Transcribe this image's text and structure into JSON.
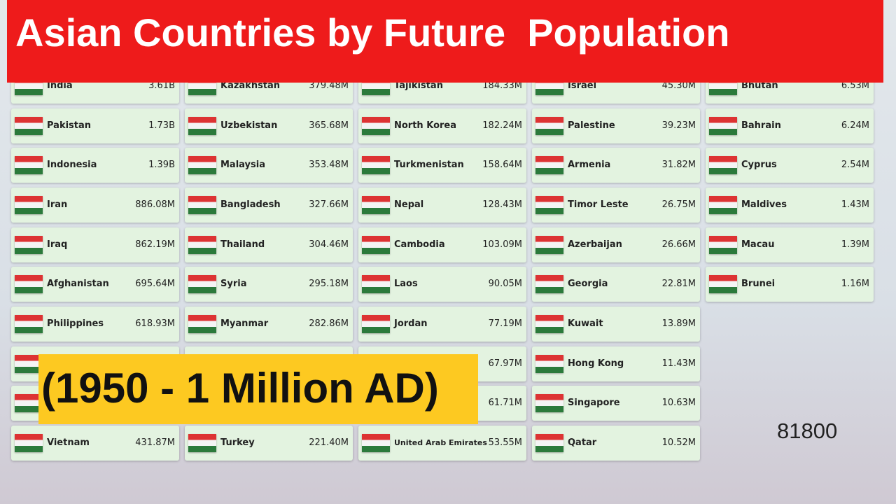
{
  "header": {
    "title": "Asian Countries by Future  Population"
  },
  "banner": {
    "text": "(1950 - 1 Million AD)"
  },
  "year": "81800",
  "columns": [
    {
      "cards": [
        {
          "name": "India",
          "value": "3.61B"
        },
        {
          "name": "Pakistan",
          "value": "1.73B"
        },
        {
          "name": "Indonesia",
          "value": "1.39B"
        },
        {
          "name": "Iran",
          "value": "886.08M"
        },
        {
          "name": "Iraq",
          "value": "862.19M"
        },
        {
          "name": "Afghanistan",
          "value": "695.64M"
        },
        {
          "name": "Philippines",
          "value": "618.93M"
        },
        null,
        null,
        {
          "name": "Vietnam",
          "value": "431.87M"
        }
      ]
    },
    {
      "cards": [
        {
          "name": "Kazakhstan",
          "value": "379.48M"
        },
        {
          "name": "Uzbekistan",
          "value": "365.68M"
        },
        {
          "name": "Malaysia",
          "value": "353.48M"
        },
        {
          "name": "Bangladesh",
          "value": "327.66M"
        },
        {
          "name": "Thailand",
          "value": "304.46M"
        },
        {
          "name": "Syria",
          "value": "295.18M"
        },
        {
          "name": "Myanmar",
          "value": "282.86M"
        },
        null,
        null,
        {
          "name": "Turkey",
          "value": "221.40M"
        }
      ]
    },
    {
      "cards": [
        {
          "name": "Tajikistan",
          "value": "184.33M"
        },
        {
          "name": "North Korea",
          "value": "182.24M"
        },
        {
          "name": "Turkmenistan",
          "value": "158.64M"
        },
        {
          "name": "Nepal",
          "value": "128.43M"
        },
        {
          "name": "Cambodia",
          "value": "103.09M"
        },
        {
          "name": "Laos",
          "value": "90.05M"
        },
        {
          "name": "Jordan",
          "value": "77.19M"
        },
        {
          "value": "67.97M"
        },
        {
          "value": "61.71M"
        },
        {
          "name": "United Arab Emirates",
          "value": "53.55M"
        }
      ]
    },
    {
      "cards": [
        {
          "name": "Israel",
          "value": "45.30M"
        },
        {
          "name": "Palestine",
          "value": "39.23M"
        },
        {
          "name": "Armenia",
          "value": "31.82M"
        },
        {
          "name": "Timor Leste",
          "value": "26.75M"
        },
        {
          "name": "Azerbaijan",
          "value": "26.66M"
        },
        {
          "name": "Georgia",
          "value": "22.81M"
        },
        {
          "name": "Kuwait",
          "value": "13.89M"
        },
        {
          "name": "Hong Kong",
          "value": "11.43M"
        },
        {
          "name": "Singapore",
          "value": "10.63M"
        },
        {
          "name": "Qatar",
          "value": "10.52M"
        }
      ]
    },
    {
      "cards": [
        {
          "name": "Bhutan",
          "value": "6.53M"
        },
        {
          "name": "Bahrain",
          "value": "6.24M"
        },
        {
          "name": "Cyprus",
          "value": "2.54M"
        },
        {
          "name": "Maldives",
          "value": "1.43M"
        },
        {
          "name": "Macau",
          "value": "1.39M"
        },
        {
          "name": "Brunei",
          "value": "1.16M"
        }
      ]
    }
  ]
}
